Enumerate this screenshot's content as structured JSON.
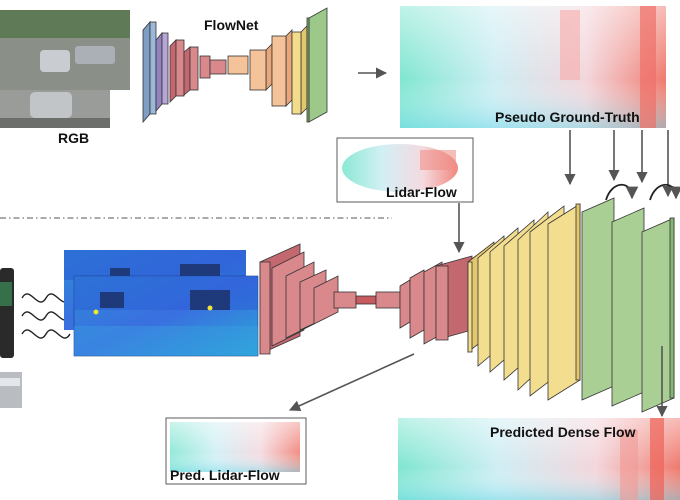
{
  "labels": {
    "rgb": "RGB",
    "flownet": "FlowNet",
    "pseudo_gt": "Pseudo Ground-Truth",
    "lidar_flow": "Lidar-Flow",
    "pred_lidar_flow": "Pred. Lidar-Flow",
    "predicted_dense_flow": "Predicted Dense Flow"
  },
  "colors": {
    "encoder_red": "#d9898c",
    "bottleneck_red": "#c65a5f",
    "decoder_yellow": "#f3dd8f",
    "decoder_green": "#a9cf95",
    "flownet_blue": "#9cb8d8",
    "flownet_purple": "#b6a5d6",
    "flownet_peach": "#f4c39a",
    "flownet_yellow": "#f3dc8c",
    "flownet_green": "#9cc88a",
    "lidar_blue": "#3c78e0",
    "arrow": "#555555"
  },
  "icons": {
    "refine_loop": "curved-arrow-icon",
    "signal": "wave-icon",
    "sensor": "lidar-sensor-icon"
  }
}
